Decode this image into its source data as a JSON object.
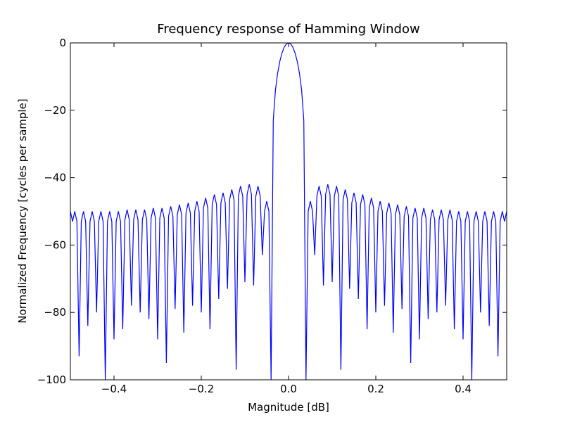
{
  "chart_data": {
    "type": "line",
    "title": "Frequency response of Hamming Window",
    "x_label": "Magnitude [dB]",
    "y_label": "Normalized Frequency [cycles per sample]",
    "xlim": [
      -0.5,
      0.5
    ],
    "ylim": [
      -100,
      0
    ],
    "xticks": [
      {
        "value": -0.4,
        "label": "−0.4"
      },
      {
        "value": -0.2,
        "label": "−0.2"
      },
      {
        "value": 0,
        "label": "0.0"
      },
      {
        "value": 0.2,
        "label": "0.2"
      },
      {
        "value": 0.4,
        "label": "0.4"
      }
    ],
    "yticks": [
      {
        "value": -100,
        "label": "−100"
      },
      {
        "value": -80,
        "label": "−80"
      },
      {
        "value": -60,
        "label": "−60"
      },
      {
        "value": -40,
        "label": "−40"
      },
      {
        "value": -20,
        "label": "−20"
      },
      0
    ],
    "x": [
      -0.5,
      -0.495,
      -0.49,
      -0.485,
      -0.48,
      -0.475,
      -0.47,
      -0.465,
      -0.46,
      -0.455,
      -0.45,
      -0.445,
      -0.44,
      -0.435,
      -0.43,
      -0.425,
      -0.42,
      -0.415,
      -0.41,
      -0.405,
      -0.4,
      -0.395,
      -0.39,
      -0.385,
      -0.38,
      -0.375,
      -0.37,
      -0.365,
      -0.36,
      -0.355,
      -0.35,
      -0.345,
      -0.34,
      -0.335,
      -0.33,
      -0.325,
      -0.32,
      -0.315,
      -0.31,
      -0.305,
      -0.3,
      -0.295,
      -0.29,
      -0.285,
      -0.28,
      -0.275,
      -0.27,
      -0.265,
      -0.26,
      -0.255,
      -0.25,
      -0.245,
      -0.24,
      -0.235,
      -0.23,
      -0.225,
      -0.22,
      -0.215,
      -0.21,
      -0.205,
      -0.2,
      -0.195,
      -0.19,
      -0.185,
      -0.18,
      -0.175,
      -0.17,
      -0.165,
      -0.16,
      -0.155,
      -0.15,
      -0.145,
      -0.14,
      -0.135,
      -0.13,
      -0.125,
      -0.12,
      -0.115,
      -0.11,
      -0.105,
      -0.1,
      -0.095,
      -0.09,
      -0.085,
      -0.08,
      -0.075,
      -0.07,
      -0.065,
      -0.06,
      -0.055,
      -0.05,
      -0.045,
      -0.04,
      -0.035,
      -0.03,
      -0.025,
      -0.02,
      -0.015,
      -0.01,
      -0.005,
      0,
      0.005,
      0.01,
      0.015,
      0.02,
      0.025,
      0.03,
      0.035,
      0.04,
      0.045,
      0.05,
      0.055,
      0.06,
      0.065,
      0.07,
      0.075,
      0.08,
      0.085,
      0.09,
      0.095,
      0.1,
      0.105,
      0.11,
      0.115,
      0.12,
      0.125,
      0.13,
      0.135,
      0.14,
      0.145,
      0.15,
      0.155,
      0.16,
      0.165,
      0.17,
      0.175,
      0.18,
      0.185,
      0.19,
      0.195,
      0.2,
      0.205,
      0.21,
      0.215,
      0.22,
      0.225,
      0.23,
      0.235,
      0.24,
      0.245,
      0.25,
      0.255,
      0.26,
      0.265,
      0.27,
      0.275,
      0.28,
      0.285,
      0.29,
      0.295,
      0.3,
      0.305,
      0.31,
      0.315,
      0.32,
      0.325,
      0.33,
      0.335,
      0.34,
      0.345,
      0.35,
      0.355,
      0.36,
      0.365,
      0.37,
      0.375,
      0.38,
      0.385,
      0.39,
      0.395,
      0.4,
      0.405,
      0.41,
      0.415,
      0.42,
      0.425,
      0.43,
      0.435,
      0.44,
      0.445,
      0.45,
      0.455,
      0.46,
      0.465,
      0.47,
      0.475,
      0.48,
      0.485,
      0.49,
      0.495,
      0.5
    ],
    "series": [
      {
        "color": "#0000ff",
        "values": [
          -50,
          -53,
          -50,
          -53,
          -93,
          -53,
          -50,
          -53,
          -84,
          -53,
          -50,
          -53,
          -80,
          -53,
          -50,
          -53,
          -100,
          -53,
          -50,
          -53,
          -88,
          -53,
          -50,
          -53,
          -85,
          -52.5,
          -49.5,
          -52.5,
          -78,
          -52.5,
          -49.5,
          -52.5,
          -80,
          -52.5,
          -49.5,
          -52.5,
          -82,
          -52,
          -49,
          -52,
          -88,
          -52,
          -49,
          -52,
          -95,
          -51.5,
          -48.5,
          -51.5,
          -79,
          -51,
          -48,
          -51,
          -86,
          -50.5,
          -47.5,
          -50.5,
          -78,
          -50,
          -47,
          -50,
          -80,
          -49,
          -46,
          -49,
          -85,
          -48,
          -45,
          -48,
          -76,
          -47.5,
          -44.5,
          -47.5,
          -73,
          -46.5,
          -43.5,
          -46.5,
          -97,
          -45.5,
          -42.5,
          -45.5,
          -71,
          -45,
          -42,
          -45,
          -72,
          -45.5,
          -42.5,
          -45.5,
          -63,
          -50,
          -47,
          -50,
          -100,
          -23,
          -14,
          -9,
          -5.5,
          -3,
          -1.3,
          -0.3,
          0,
          -0.3,
          -1.3,
          -3,
          -5.5,
          -9,
          -14,
          -23,
          -100,
          -50,
          -47,
          -50,
          -63,
          -45.5,
          -42.5,
          -45.5,
          -72,
          -45,
          -42,
          -45,
          -71,
          -45.5,
          -42.5,
          -45.5,
          -97,
          -46.5,
          -43.5,
          -46.5,
          -73,
          -47.5,
          -44.5,
          -47.5,
          -76,
          -48,
          -45,
          -48,
          -85,
          -49,
          -46,
          -49,
          -80,
          -50,
          -47,
          -50,
          -78,
          -50.5,
          -47.5,
          -50.5,
          -86,
          -51,
          -48,
          -51,
          -79,
          -51.5,
          -48.5,
          -51.5,
          -95,
          -52,
          -49,
          -52,
          -88,
          -52,
          -49,
          -52,
          -82,
          -52.5,
          -49.5,
          -52.5,
          -80,
          -52.5,
          -49.5,
          -52.5,
          -78,
          -52.5,
          -49.5,
          -52.5,
          -85,
          -53,
          -50,
          -53,
          -88,
          -53,
          -50,
          -53,
          -100,
          -53,
          -50,
          -53,
          -80,
          -53,
          -50,
          -53,
          -84,
          -53,
          -50,
          -53,
          -93,
          -53,
          -50,
          -53,
          -50
        ]
      }
    ]
  }
}
